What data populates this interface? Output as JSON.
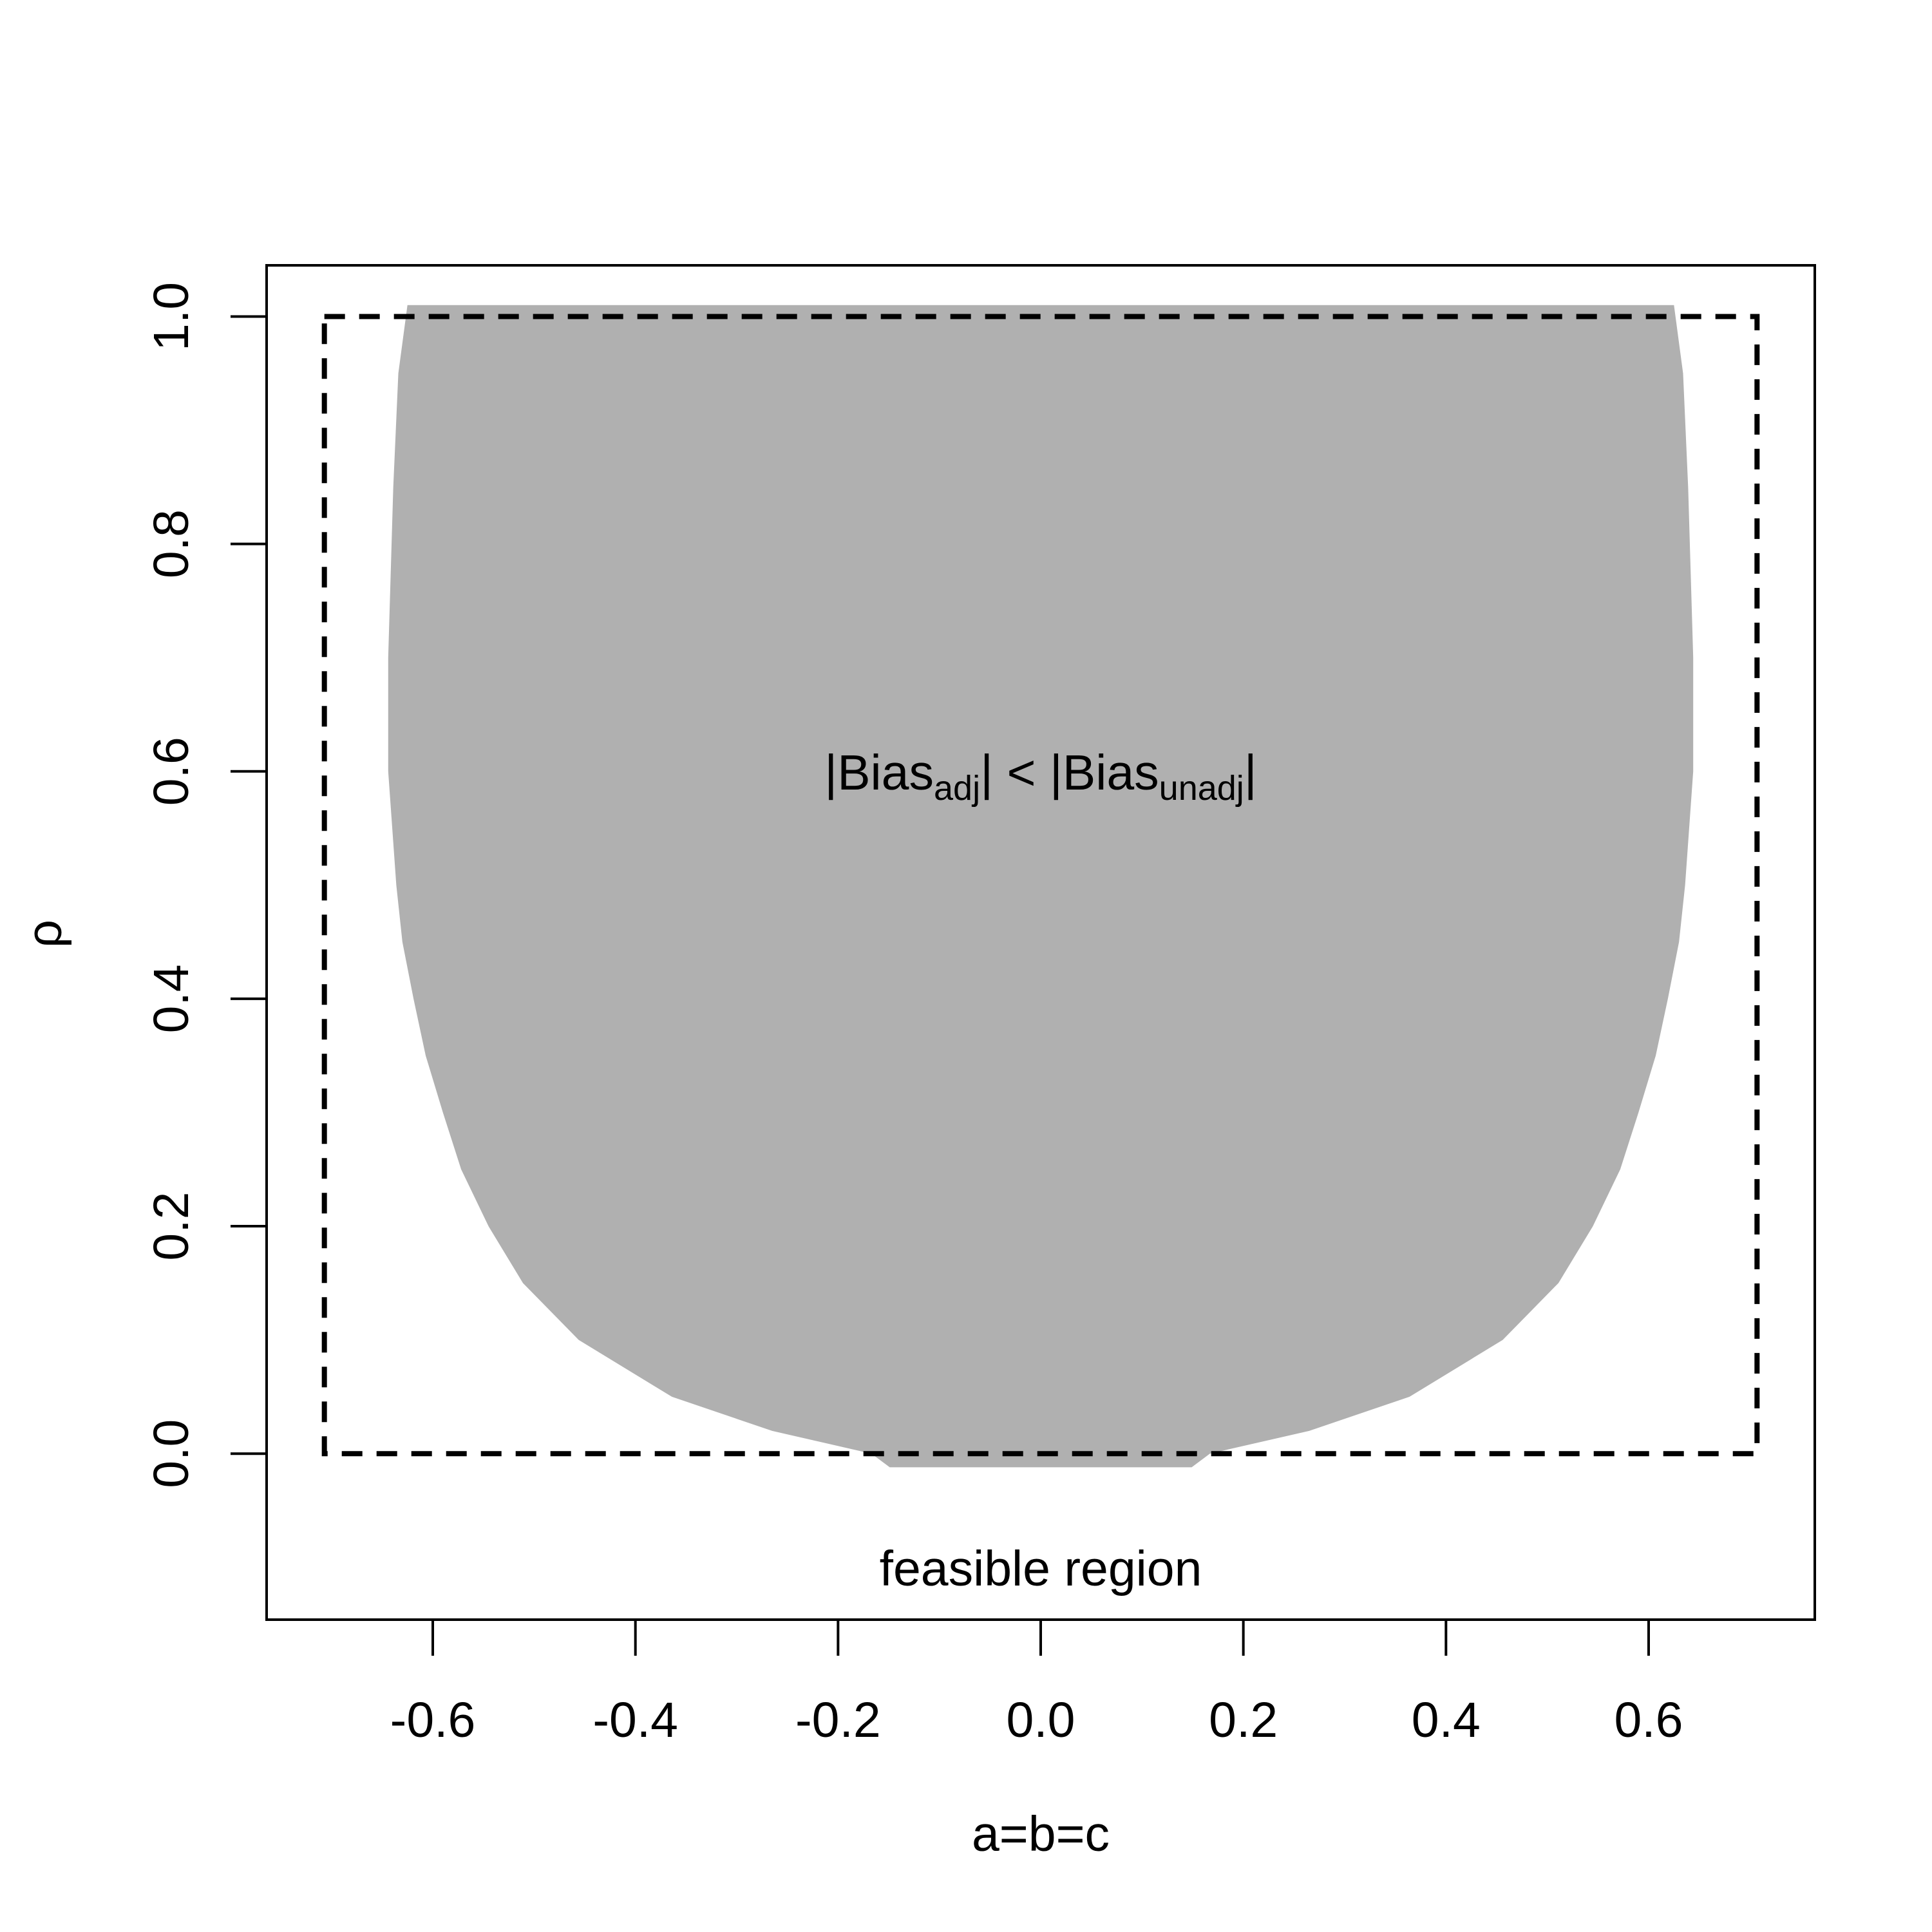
{
  "chart_data": {
    "type": "region",
    "x_label": "a=b=c",
    "y_label": "ρ",
    "xlim": [
      -0.764,
      0.764
    ],
    "ylim": [
      -0.146,
      1.045
    ],
    "xticks": [
      -0.6,
      -0.4,
      -0.2,
      {
        "value": 0,
        "label": "0.0"
      },
      0.2,
      0.4,
      0.6
    ],
    "yticks": [
      {
        "value": 0,
        "label": "0.0"
      },
      0.2,
      0.4,
      0.6,
      0.8,
      {
        "value": 1,
        "label": "1.0"
      }
    ],
    "series": [
      {
        "color": "#b0b0b0",
        "x": [
          -0.625,
          -0.634,
          -0.639,
          -0.644,
          -0.644,
          -0.636,
          -0.63,
          -0.619,
          -0.607,
          -0.59,
          -0.572,
          -0.545,
          -0.511,
          -0.456,
          -0.364,
          -0.265,
          -0.167,
          -0.149,
          0.149,
          0.167,
          0.265,
          0.364,
          0.456,
          0.511,
          0.545,
          0.572,
          0.59,
          0.607,
          0.619,
          0.63,
          0.636,
          0.644,
          0.644,
          0.639,
          0.634,
          0.625
        ],
        "values": [
          1.01,
          0.95,
          0.85,
          0.7,
          0.6,
          0.5,
          0.45,
          0.4,
          0.35,
          0.3,
          0.25,
          0.2,
          0.15,
          0.1,
          0.05,
          0.02,
          0.0,
          -0.012,
          -0.012,
          0.0,
          0.02,
          0.05,
          0.1,
          0.15,
          0.2,
          0.25,
          0.3,
          0.35,
          0.4,
          0.45,
          0.5,
          0.6,
          0.7,
          0.85,
          0.95,
          1.01
        ]
      }
    ],
    "box": {
      "x": [
        -0.707,
        0.707
      ],
      "y": [
        0,
        1
      ],
      "label": "feasible region"
    },
    "annotation": [
      {
        "text": "|"
      },
      {
        "text": "Bias"
      },
      {
        "text": "adj",
        "sub": true
      },
      {
        "text": "|"
      },
      {
        "text": " < "
      },
      {
        "text": "|"
      },
      {
        "text": "Bias"
      },
      {
        "text": "unadj",
        "sub": true
      },
      {
        "text": "|"
      }
    ]
  }
}
